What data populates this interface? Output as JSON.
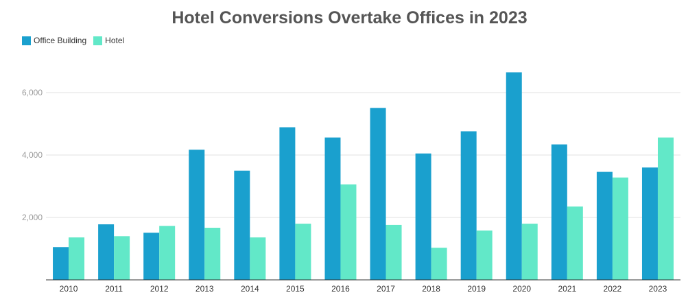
{
  "chart_data": {
    "type": "bar",
    "title": "Hotel Conversions Overtake Offices in 2023",
    "xlabel": "",
    "ylabel": "",
    "categories": [
      "2010",
      "2011",
      "2012",
      "2013",
      "2014",
      "2015",
      "2016",
      "2017",
      "2018",
      "2019",
      "2020",
      "2021",
      "2022",
      "2023"
    ],
    "series": [
      {
        "name": "Office Building",
        "color": "#1aa0ce",
        "values": [
          1050,
          1780,
          1510,
          4170,
          3500,
          4890,
          4560,
          5510,
          4050,
          4760,
          6650,
          4340,
          3460,
          3600
        ]
      },
      {
        "name": "Hotel",
        "color": "#62e8c8",
        "values": [
          1360,
          1400,
          1730,
          1670,
          1360,
          1800,
          3060,
          1760,
          1030,
          1580,
          1800,
          2350,
          3280,
          4560
        ]
      }
    ],
    "ylim": [
      0,
      6700
    ],
    "yticks": [
      2000,
      4000,
      6000
    ],
    "ytick_labels": [
      "2,000",
      "4,000",
      "6,000"
    ],
    "grid": true,
    "legend_position": "top-left"
  }
}
